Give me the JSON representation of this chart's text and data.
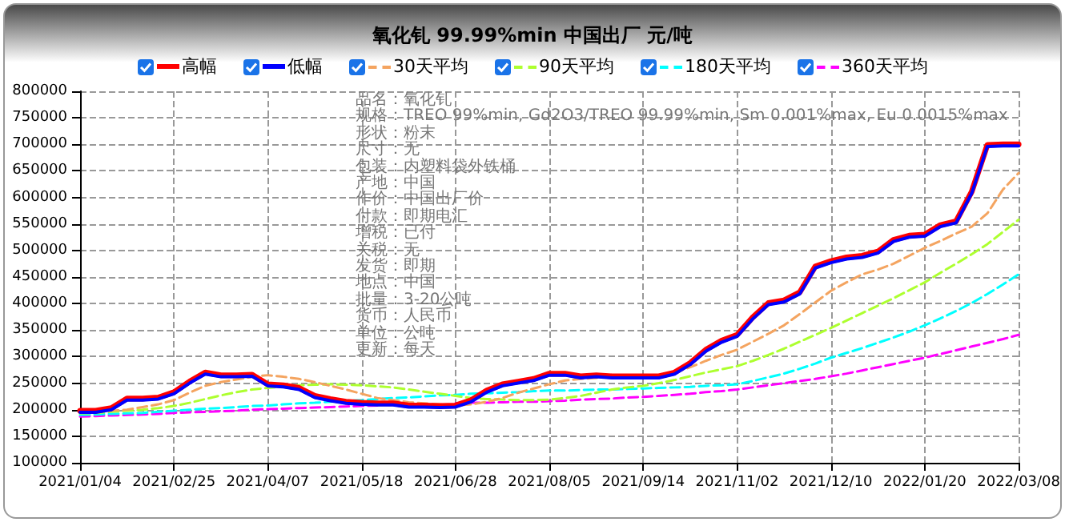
{
  "chart_data": {
    "type": "line",
    "title": "氧化钆 99.99%min 中国出厂 元/吨",
    "categories": [
      "2021/01/04",
      null,
      null,
      null,
      null,
      null,
      "2021/02/25",
      null,
      null,
      null,
      null,
      null,
      "2021/04/07",
      null,
      null,
      null,
      null,
      null,
      "2021/05/18",
      null,
      null,
      null,
      null,
      null,
      "2021/06/28",
      null,
      null,
      null,
      null,
      null,
      "2021/08/05",
      null,
      null,
      null,
      null,
      null,
      "2021/09/14",
      null,
      null,
      null,
      null,
      null,
      "2021/11/02",
      null,
      null,
      null,
      null,
      null,
      "2021/12/10",
      null,
      null,
      null,
      null,
      null,
      "2022/01/20",
      null,
      null,
      null,
      null,
      null,
      "2022/03/08"
    ],
    "series": [
      {
        "name": "高幅",
        "color": "#ff0000",
        "line_style": "solid",
        "values": [
          198000,
          198000,
          203000,
          221000,
          221000,
          223000,
          233000,
          253000,
          270000,
          265000,
          265000,
          266000,
          248000,
          246000,
          241000,
          226000,
          220000,
          215000,
          213000,
          212000,
          212000,
          208000,
          208000,
          207000,
          208000,
          218000,
          236000,
          248000,
          253000,
          258000,
          268000,
          268000,
          263000,
          265000,
          263000,
          263000,
          263000,
          263000,
          270000,
          288000,
          313000,
          330000,
          341000,
          374000,
          401000,
          406000,
          421000,
          470000,
          480000,
          487000,
          490000,
          498000,
          520000,
          528000,
          530000,
          548000,
          555000,
          611000,
          699000,
          700000,
          700000
        ]
      },
      {
        "name": "低幅",
        "color": "#0000ff",
        "line_style": "solid",
        "values": [
          195000,
          195000,
          200000,
          218000,
          218000,
          220000,
          230000,
          250000,
          267000,
          262000,
          262000,
          263000,
          245000,
          243000,
          238000,
          223000,
          217000,
          212000,
          210000,
          209000,
          209000,
          205000,
          205000,
          204000,
          205000,
          215000,
          233000,
          245000,
          250000,
          255000,
          265000,
          265000,
          260000,
          262000,
          260000,
          260000,
          260000,
          260000,
          267000,
          285000,
          310000,
          327000,
          338000,
          371000,
          398000,
          403000,
          418000,
          467000,
          477000,
          484000,
          487000,
          495000,
          517000,
          525000,
          527000,
          545000,
          552000,
          608000,
          696000,
          697000,
          697000
        ]
      },
      {
        "name": "30天平均",
        "color": "#f4a460",
        "line_style": "dashed",
        "values": [
          195000,
          196000,
          198000,
          200000,
          205000,
          210000,
          218000,
          232000,
          245000,
          252000,
          257000,
          262000,
          265000,
          262000,
          258000,
          252000,
          245000,
          238000,
          230000,
          222000,
          218000,
          214000,
          212000,
          210000,
          208000,
          210000,
          215000,
          222000,
          232000,
          240000,
          248000,
          255000,
          258000,
          260000,
          262000,
          263000,
          263000,
          264000,
          270000,
          280000,
          292000,
          303000,
          313000,
          328000,
          343000,
          359000,
          380000,
          402000,
          424000,
          440000,
          455000,
          464000,
          475000,
          490000,
          505000,
          518000,
          532000,
          545000,
          570000,
          615000,
          646000
        ]
      },
      {
        "name": "90天平均",
        "color": "#adff2f",
        "line_style": "dashed",
        "values": [
          193000,
          194000,
          196000,
          198000,
          200000,
          203000,
          207000,
          213000,
          220000,
          227000,
          233000,
          238000,
          241000,
          244000,
          246000,
          247000,
          248000,
          247000,
          246000,
          244000,
          242000,
          238000,
          234000,
          230000,
          226000,
          222000,
          220000,
          219000,
          218000,
          218000,
          219000,
          222000,
          226000,
          232000,
          238000,
          242000,
          245000,
          250000,
          256000,
          263000,
          270000,
          276000,
          282000,
          292000,
          303000,
          315000,
          328000,
          341000,
          354000,
          368000,
          382000,
          396000,
          410000,
          425000,
          440000,
          458000,
          475000,
          493000,
          512000,
          535000,
          558000
        ]
      },
      {
        "name": "180天平均",
        "color": "#00ffff",
        "line_style": "dashed",
        "values": [
          190000,
          191000,
          192000,
          193000,
          194000,
          196000,
          198000,
          200000,
          202000,
          203000,
          205000,
          207000,
          208000,
          210000,
          212000,
          213000,
          215000,
          217000,
          218000,
          220000,
          222000,
          223000,
          225000,
          227000,
          228000,
          230000,
          231000,
          232000,
          233000,
          235000,
          236000,
          236000,
          237000,
          238000,
          238000,
          239000,
          240000,
          241000,
          242000,
          243000,
          245000,
          246000,
          248000,
          254000,
          261000,
          268000,
          277000,
          287000,
          298000,
          307000,
          316000,
          326000,
          336000,
          347000,
          359000,
          372000,
          386000,
          401000,
          418000,
          436000,
          455000
        ]
      },
      {
        "name": "360天平均",
        "color": "#ff00ff",
        "line_style": "dashed",
        "values": [
          187000,
          188000,
          189000,
          190000,
          191000,
          192000,
          194000,
          195000,
          196000,
          197000,
          198000,
          200000,
          201000,
          202000,
          203000,
          204000,
          205000,
          206000,
          207000,
          208000,
          null,
          null,
          null,
          null,
          212000,
          213000,
          213000,
          214000,
          215000,
          215000,
          216000,
          217000,
          219000,
          220000,
          221000,
          223000,
          224000,
          226000,
          228000,
          230000,
          233000,
          235000,
          238000,
          242000,
          246000,
          250000,
          254000,
          258000,
          263000,
          268000,
          274000,
          280000,
          286000,
          292000,
          298000,
          305000,
          312000,
          319000,
          326000,
          333000,
          341000
        ]
      }
    ],
    "ylim": [
      100000,
      800000
    ],
    "yticks": [
      100000,
      150000,
      200000,
      250000,
      300000,
      350000,
      400000,
      450000,
      500000,
      550000,
      600000,
      650000,
      700000,
      750000,
      800000
    ],
    "grid": true,
    "legend": "top",
    "marker": "none",
    "annotations": [
      "品名：氧化钆",
      "规格：TREO 99%min, Gd2O3/TREO 99.99%min, Sm 0.001%max, Eu 0.0015%max",
      "形状：粉末",
      "尺寸：无",
      "包装：内塑料袋外铁桶",
      "产地：中国",
      "作价：中国出厂价",
      "付款：即期电汇",
      "增税：已付",
      "关税：无",
      "发货：即期",
      "地点：中国",
      "批量：3-20公吨",
      "货币：人民币",
      "单位：公吨",
      "更新：每天"
    ]
  }
}
